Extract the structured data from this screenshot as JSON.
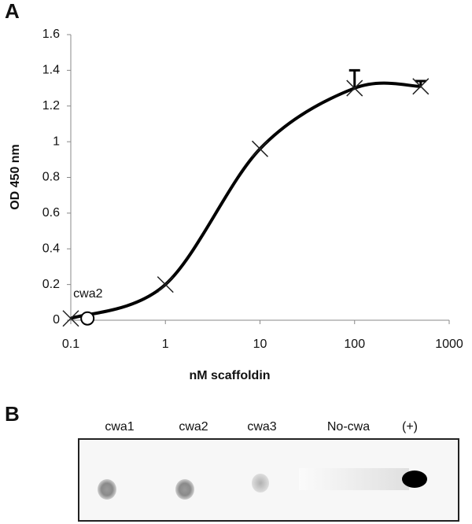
{
  "panels": {
    "a": "A",
    "b": "B"
  },
  "chart_data": {
    "type": "line",
    "xlabel": "nM scaffoldin",
    "ylabel": "OD 450 nm",
    "x": [
      0.1,
      1,
      10,
      100,
      500
    ],
    "series": [
      {
        "values": [
          0.01,
          0.2,
          0.96,
          1.3,
          1.31
        ],
        "errors": [
          null,
          null,
          null,
          0.1,
          0.03
        ],
        "color": "#000000"
      }
    ],
    "xlog": true,
    "xlim": [
      0.1,
      1000
    ],
    "xticks": [
      0.1,
      1,
      10,
      100,
      1000
    ],
    "ylim": [
      0,
      1.6
    ],
    "yticks": [
      0,
      0.2,
      0.4,
      0.6,
      0.8,
      1,
      1.2,
      1.4,
      1.6
    ],
    "annotation": {
      "text": "cwa2",
      "x": 0.15,
      "y": 0.01
    }
  },
  "blot": {
    "lanes": [
      "cwa1",
      "cwa2",
      "cwa3",
      "No-cwa",
      "(+)"
    ]
  }
}
